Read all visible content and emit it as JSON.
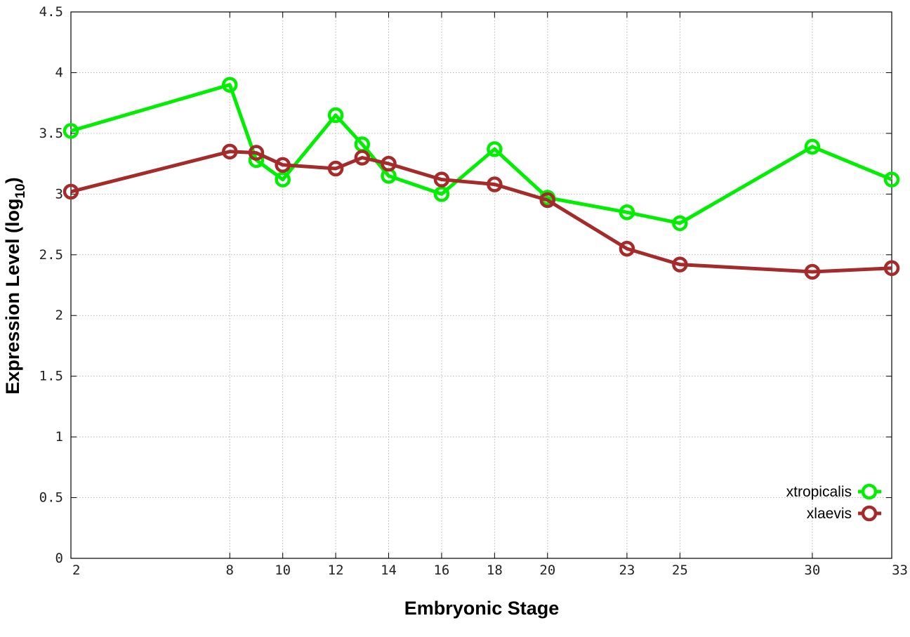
{
  "chart_data": {
    "type": "line",
    "xlabel": "Embryonic Stage",
    "ylabel_main": "Expression Level (log",
    "ylabel_sub": "10",
    "ylabel_close": ")",
    "x": [
      2,
      8,
      9,
      10,
      12,
      13,
      14,
      16,
      18,
      20,
      23,
      25,
      30,
      33
    ],
    "x_ticks": [
      2,
      8,
      10,
      12,
      14,
      16,
      18,
      20,
      23,
      25,
      30,
      33
    ],
    "y_ticks": [
      "0",
      "0.5",
      "1",
      "1.5",
      "2",
      "2.5",
      "3",
      "3.5",
      "4",
      "4.5"
    ],
    "xlim": [
      2,
      33
    ],
    "ylim": [
      0,
      4.5
    ],
    "grid": true,
    "legend_position": "bottom-right",
    "series": [
      {
        "name": "xtropicalis",
        "color": "#00ee00",
        "values": [
          3.52,
          3.9,
          3.28,
          3.12,
          3.65,
          3.41,
          3.15,
          3.0,
          3.37,
          2.97,
          2.85,
          2.76,
          3.39,
          3.12
        ]
      },
      {
        "name": "xlaevis",
        "color": "#a52a2a",
        "values": [
          3.02,
          3.35,
          3.34,
          3.24,
          3.21,
          3.3,
          3.25,
          3.12,
          3.08,
          2.95,
          2.55,
          2.42,
          2.36,
          2.39
        ]
      }
    ]
  }
}
